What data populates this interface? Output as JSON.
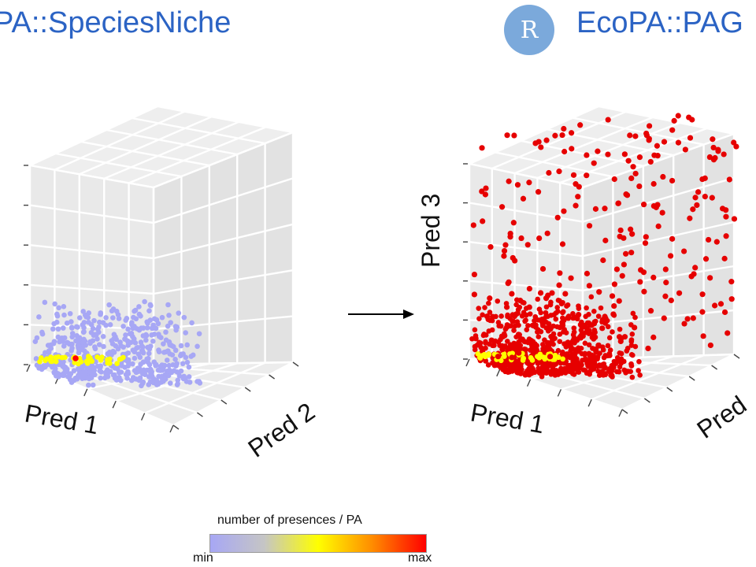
{
  "header": {
    "left_title": "PA::SpeciesNiche",
    "right_logo": "R",
    "right_title": "EcoPA::PAG"
  },
  "colors": {
    "title": "#2b63c4",
    "r_logo_bg": "#7ba9db",
    "panel_bg": "#e9e9e9",
    "grid": "#ffffff",
    "presence_low": "#a7a7f5",
    "presence_mid": "#ffff00",
    "presence_high": "#ff0000",
    "pa_point": "#e60000"
  },
  "chart_data": [
    {
      "type": "scatter",
      "projection": "3d",
      "xlabel": "Pred 1",
      "ylabel": "Pred 2",
      "zlabel": "",
      "color_scale": "number of presences / PA",
      "description_series": [
        "species presence points clustered low on Pred 3"
      ]
    },
    {
      "type": "scatter",
      "projection": "3d",
      "xlabel": "Pred 1",
      "ylabel": "Pred",
      "zlabel": "Pred 3",
      "color_scale": "number of presences / PA"
    }
  ],
  "legend": {
    "title": "number of presences / PA",
    "min_label": "min",
    "max_label": "max"
  }
}
